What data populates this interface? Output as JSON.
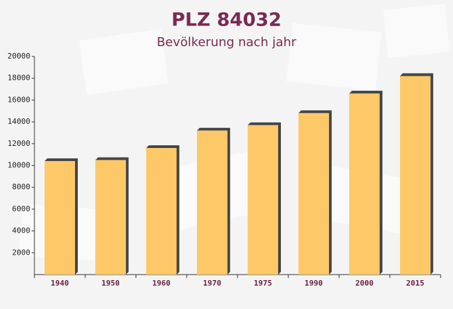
{
  "chart_data": {
    "type": "bar",
    "title": "PLZ 84032",
    "subtitle": "Bevölkerung nach jahr",
    "categories": [
      "1940",
      "1950",
      "1960",
      "1970",
      "1975",
      "1990",
      "2000",
      "2015"
    ],
    "values": [
      10400,
      10500,
      11600,
      13200,
      13700,
      14800,
      16600,
      18200
    ],
    "color": "#fdc868",
    "ylim": [
      0,
      20000
    ],
    "yticks": [
      2000,
      4000,
      6000,
      8000,
      10000,
      12000,
      14000,
      16000,
      18000,
      20000
    ],
    "grid": false
  }
}
